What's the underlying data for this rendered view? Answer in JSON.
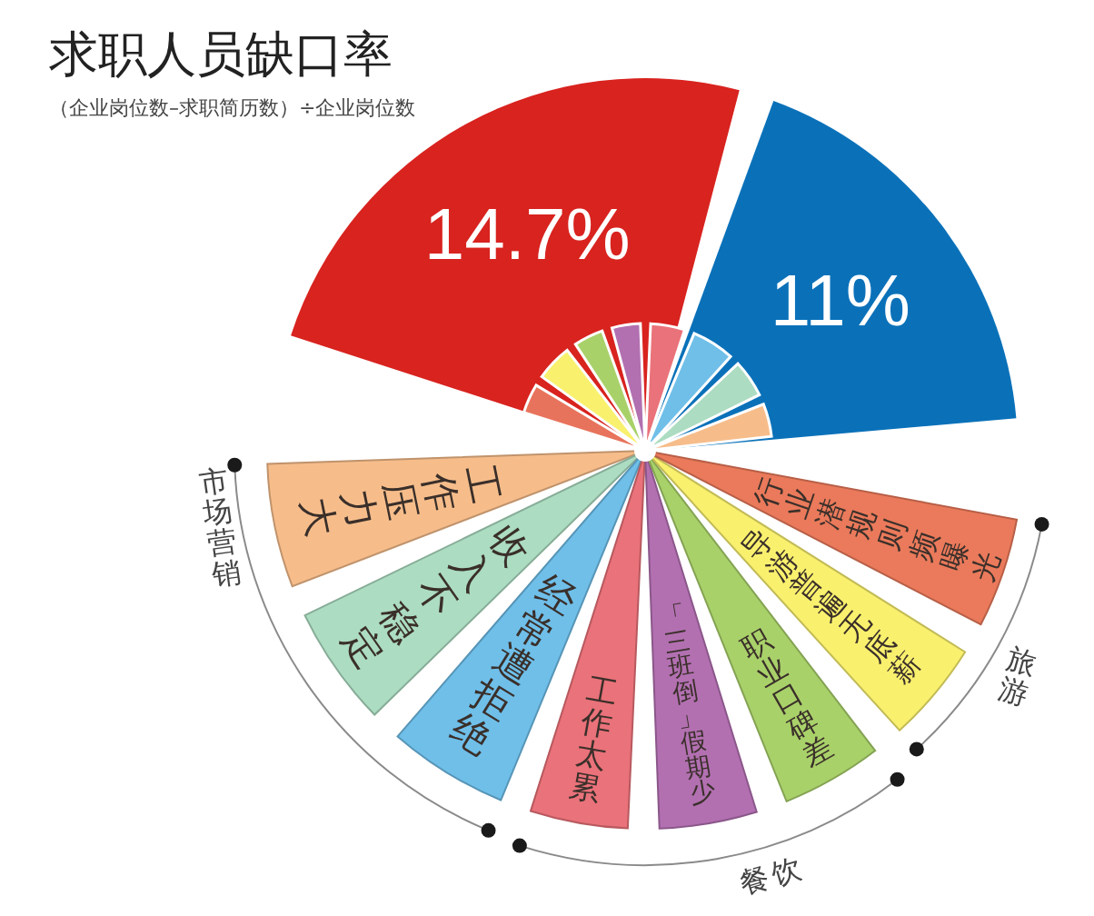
{
  "chart_data": [
    {
      "type": "pie",
      "title": "求职人员缺口率",
      "subtitle": "（企业岗位数–求职简历数）÷企业岗位数",
      "categories": [
        null,
        null
      ],
      "values": [
        14.7,
        11
      ],
      "colors": [
        "#d8231f",
        "#0a71b9"
      ],
      "value_labels": [
        "14.7%",
        "11%"
      ]
    },
    {
      "type": "pie",
      "categories": [
        null,
        null,
        null,
        null,
        null,
        null,
        null,
        null
      ],
      "values": [
        10.9,
        13.4,
        10.9,
        10.5,
        12.6,
        15.8,
        13.8,
        12.1
      ],
      "colors": [
        "#e8735c",
        "#f9f06e",
        "#a9d16a",
        "#b270b1",
        "#ea727a",
        "#6fbfe9",
        "#acdcc1",
        "#f6bd8b"
      ]
    },
    {
      "type": "pie",
      "categories": [
        "工作压力大",
        "收入不稳定",
        "经常遭拒绝",
        "工作太累",
        "「三班倒」假期少",
        "职业口碑差",
        "导游普遍无底薪",
        "行业潜规则频曝光"
      ],
      "values": [
        14.2,
        13.8,
        13.8,
        11.2,
        11.2,
        11.6,
        11.6,
        12.6
      ],
      "colors": [
        "#f6bd8b",
        "#acdcc1",
        "#6fbfe9",
        "#ea727a",
        "#b270b1",
        "#a9d16a",
        "#f9f06e",
        "#ea7a5b"
      ],
      "annotations": [
        "市场营销",
        "餐饮",
        "旅游"
      ]
    }
  ]
}
